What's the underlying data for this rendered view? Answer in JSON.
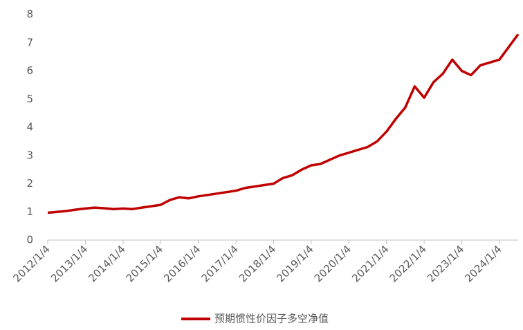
{
  "chart_data": {
    "type": "line",
    "x": [
      "2012/1/4",
      "2012/4/4",
      "2012/7/4",
      "2012/10/4",
      "2013/1/4",
      "2013/4/4",
      "2013/7/4",
      "2013/10/4",
      "2014/1/4",
      "2014/4/4",
      "2014/7/4",
      "2014/10/4",
      "2015/1/4",
      "2015/4/4",
      "2015/7/4",
      "2015/10/4",
      "2016/1/4",
      "2016/4/4",
      "2016/7/4",
      "2016/10/4",
      "2017/1/4",
      "2017/4/4",
      "2017/7/4",
      "2017/10/4",
      "2018/1/4",
      "2018/4/4",
      "2018/7/4",
      "2018/10/4",
      "2019/1/4",
      "2019/4/4",
      "2019/7/4",
      "2019/10/4",
      "2020/1/4",
      "2020/4/4",
      "2020/7/4",
      "2020/10/4",
      "2021/1/4",
      "2021/4/4",
      "2021/7/4",
      "2021/10/4",
      "2022/1/4",
      "2022/4/4",
      "2022/7/4",
      "2022/10/4",
      "2023/1/4",
      "2023/4/4",
      "2023/7/4",
      "2023/10/4",
      "2024/1/4",
      "2024/4/4",
      "2024/7/4"
    ],
    "series": [
      {
        "name": "预期惯性价因子多空净值",
        "color": "#c00000",
        "values": [
          0.97,
          1.0,
          1.03,
          1.08,
          1.12,
          1.15,
          1.13,
          1.1,
          1.12,
          1.1,
          1.15,
          1.2,
          1.25,
          1.42,
          1.52,
          1.48,
          1.55,
          1.6,
          1.65,
          1.7,
          1.75,
          1.85,
          1.9,
          1.95,
          2.0,
          2.2,
          2.3,
          2.5,
          2.65,
          2.7,
          2.85,
          3.0,
          3.1,
          3.2,
          3.3,
          3.5,
          3.85,
          4.3,
          4.7,
          5.45,
          5.05,
          5.6,
          5.9,
          6.4,
          6.0,
          5.85,
          6.2,
          6.3,
          6.4,
          6.85,
          7.3
        ]
      }
    ],
    "xlim": [
      "2012/1/4",
      "2024/7/4"
    ],
    "xticks": [
      "2012/1/4",
      "2013/1/4",
      "2014/1/4",
      "2015/1/4",
      "2016/1/4",
      "2017/1/4",
      "2018/1/4",
      "2019/1/4",
      "2020/1/4",
      "2021/1/4",
      "2022/1/4",
      "2023/1/4",
      "2024/1/4"
    ],
    "ylim": [
      0,
      8
    ],
    "yticks": [
      0,
      1,
      2,
      3,
      4,
      5,
      6,
      7,
      8
    ],
    "legend": "bottom"
  }
}
